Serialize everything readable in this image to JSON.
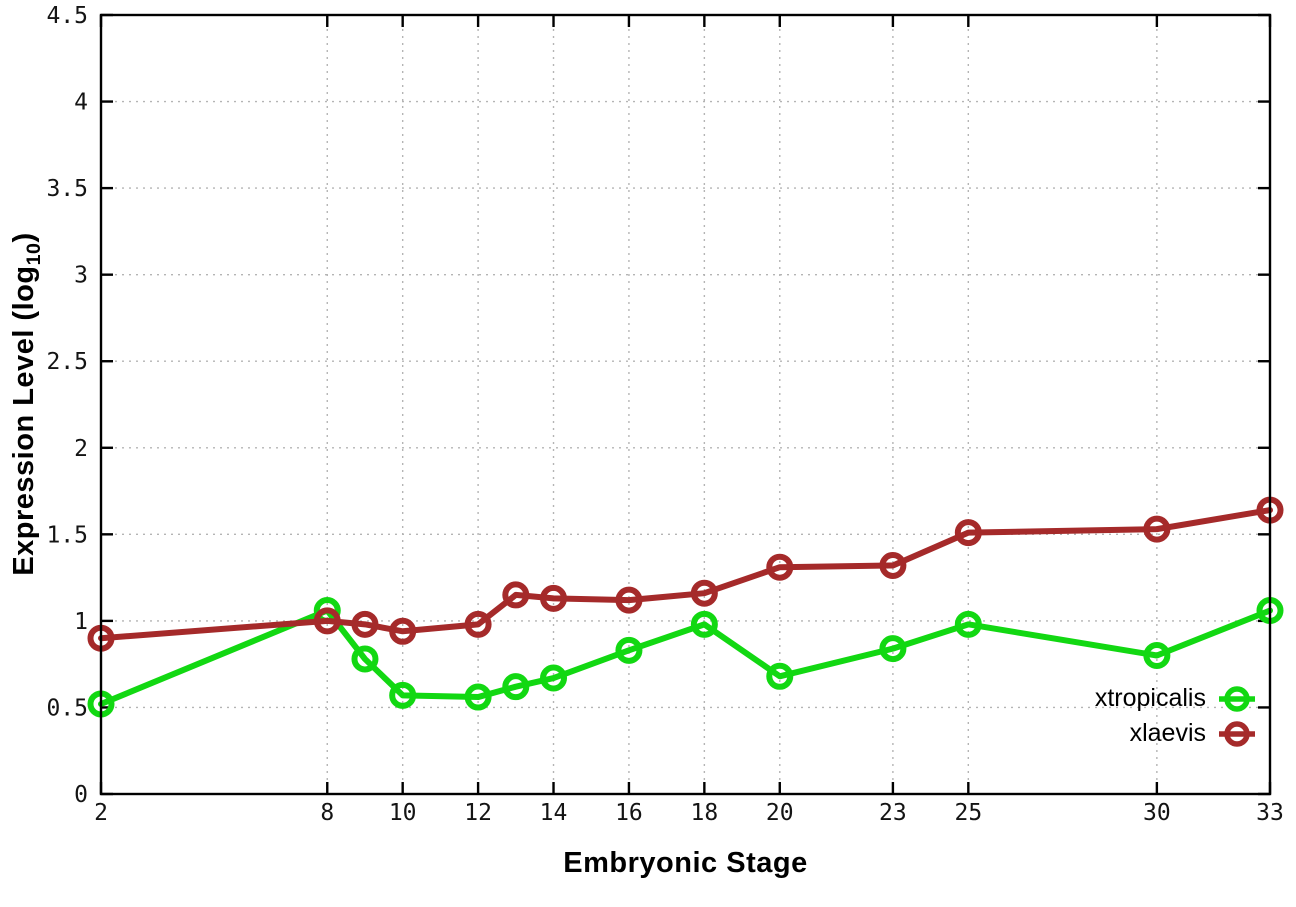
{
  "figure": {
    "x_axis_title": "Embryonic Stage",
    "y_axis_title_prefix": "Expression Level (log",
    "y_axis_title_sub": "10",
    "y_axis_title_suffix": ")"
  },
  "chart_data": {
    "type": "line",
    "title": "",
    "xlabel": "Embryonic Stage",
    "ylabel": "Expression Level (log10)",
    "x": [
      2,
      8,
      9,
      10,
      12,
      13,
      14,
      16,
      18,
      20,
      23,
      25,
      30,
      33
    ],
    "xticks": [
      2,
      8,
      10,
      12,
      14,
      16,
      18,
      20,
      23,
      25,
      30,
      33
    ],
    "yticks": [
      0,
      0.5,
      1,
      1.5,
      2,
      2.5,
      3,
      3.5,
      4,
      4.5
    ],
    "xlim": [
      2,
      33
    ],
    "ylim": [
      0,
      4.5
    ],
    "grid": true,
    "legend_position": "inside-right-lower",
    "series": [
      {
        "name": "xtropicalis",
        "color": "#12d812",
        "marker": "open-circle",
        "values": [
          0.52,
          1.06,
          0.78,
          0.57,
          0.56,
          0.62,
          0.67,
          0.83,
          0.98,
          0.68,
          0.84,
          0.98,
          0.8,
          1.06
        ]
      },
      {
        "name": "xlaevis",
        "color": "#a52a2a",
        "marker": "open-circle",
        "values": [
          0.9,
          1.0,
          0.98,
          0.94,
          0.98,
          1.15,
          1.13,
          1.12,
          1.16,
          1.31,
          1.32,
          1.51,
          1.53,
          1.64
        ]
      }
    ],
    "background": "#ffffff",
    "border_color": "#000000",
    "grid_color": "#b4b4b4",
    "tick_color": "#000000"
  }
}
